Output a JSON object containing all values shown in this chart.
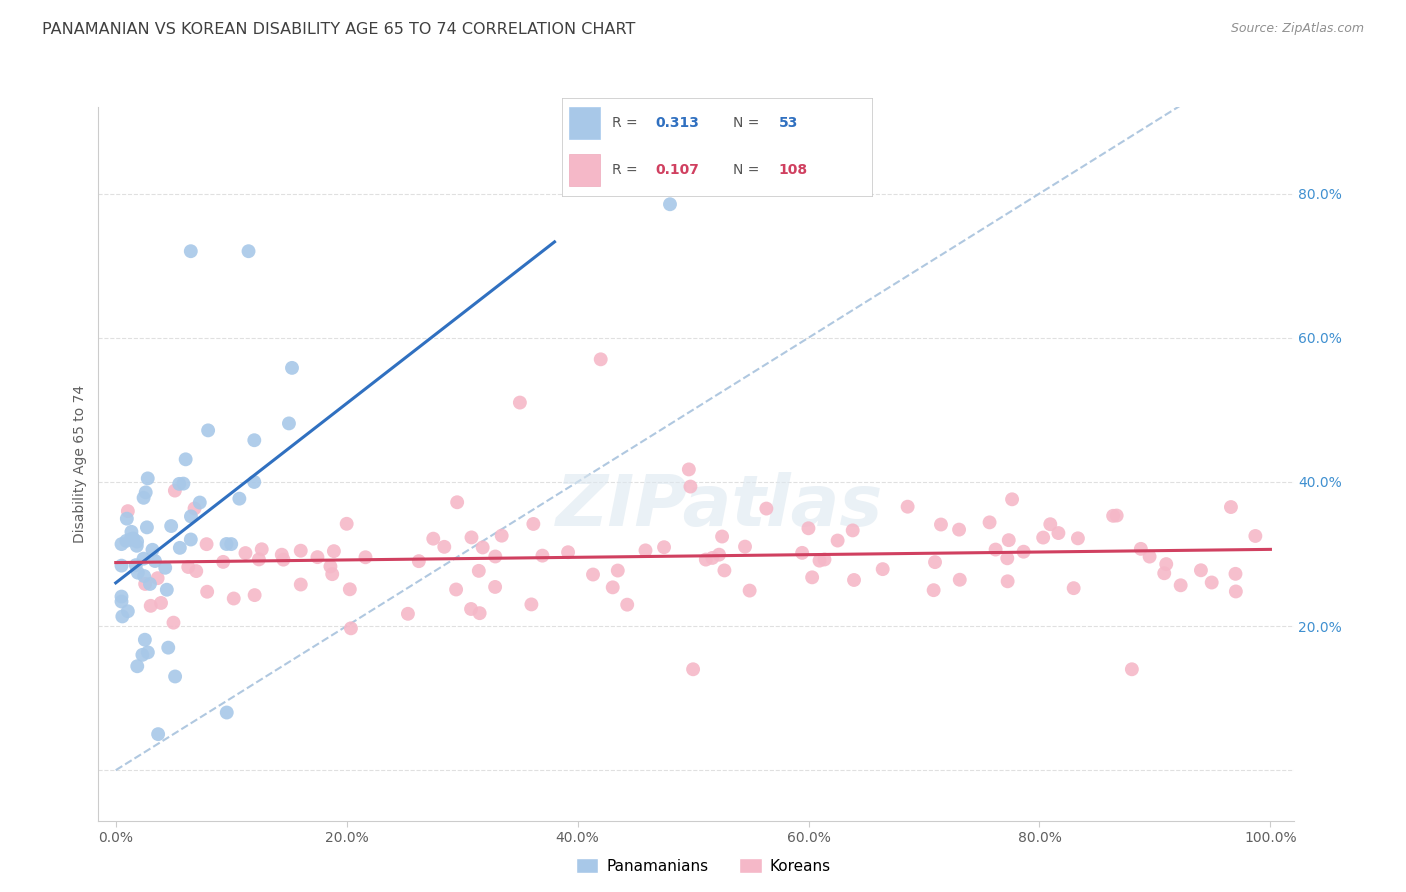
{
  "title": "PANAMANIAN VS KOREAN DISABILITY AGE 65 TO 74 CORRELATION CHART",
  "source": "Source: ZipAtlas.com",
  "ylabel": "Disability Age 65 to 74",
  "blue_R": 0.313,
  "blue_N": 53,
  "pink_R": 0.107,
  "pink_N": 108,
  "blue_color": "#a8c8e8",
  "pink_color": "#f5b8c8",
  "blue_line_color": "#3070c0",
  "pink_line_color": "#d04060",
  "dashed_line_color": "#b0c8e0",
  "background_color": "#ffffff",
  "grid_color": "#e0e0e0",
  "ytick_color": "#4090d0",
  "title_color": "#404040",
  "label_color": "#606060",
  "source_color": "#909090"
}
